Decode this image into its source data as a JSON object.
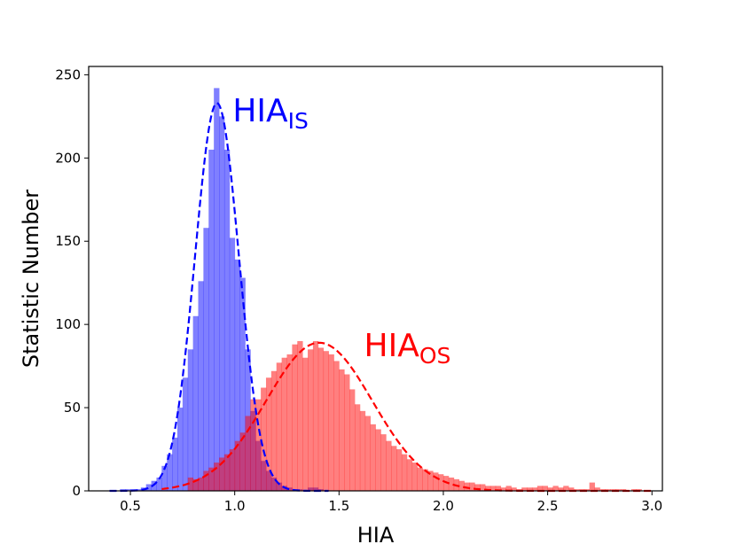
{
  "chart_data": {
    "type": "histogram",
    "xlabel": "HIA",
    "ylabel": "Statistic Number",
    "xlim": [
      0.3,
      3.05
    ],
    "ylim": [
      0,
      255
    ],
    "x_ticks": [
      "0.5",
      "1.0",
      "1.5",
      "2.0",
      "2.5",
      "3.0"
    ],
    "y_ticks": [
      "0",
      "50",
      "100",
      "150",
      "200",
      "250"
    ],
    "grid": false,
    "bin_width": 0.025,
    "series": [
      {
        "name_main": "HIA",
        "name_sub": "IS",
        "color": "#0000ff",
        "bar_opacity": 0.5,
        "bin_starts": [
          0.35,
          0.375,
          0.4,
          0.425,
          0.45,
          0.475,
          0.5,
          0.525,
          0.55,
          0.575,
          0.6,
          0.625,
          0.65,
          0.675,
          0.7,
          0.725,
          0.75,
          0.775,
          0.8,
          0.825,
          0.85,
          0.875,
          0.9,
          0.925,
          0.95,
          0.975,
          1.0,
          1.025,
          1.05,
          1.075,
          1.1,
          1.125,
          1.15,
          1.175,
          1.2,
          1.225,
          1.25,
          1.275,
          1.3,
          1.325,
          1.35,
          1.375,
          1.4,
          1.425,
          1.45
        ],
        "counts": [
          0,
          0,
          0,
          0,
          1,
          1,
          1,
          1,
          2,
          4,
          6,
          8,
          15,
          22,
          32,
          50,
          68,
          85,
          105,
          126,
          158,
          205,
          242,
          225,
          205,
          152,
          139,
          128,
          85,
          48,
          30,
          18,
          12,
          8,
          5,
          3,
          2,
          1,
          1,
          0,
          2,
          2,
          1,
          0,
          0
        ],
        "fit": {
          "type": "gaussian",
          "mean": 0.915,
          "sigma": 0.105,
          "peak": 233,
          "x_range": [
            0.4,
            1.45
          ],
          "style": "dashed"
        }
      },
      {
        "name_main": "HIA",
        "name_sub": "OS",
        "color": "#ff0000",
        "bar_opacity": 0.5,
        "bin_starts": [
          0.65,
          0.675,
          0.7,
          0.725,
          0.75,
          0.775,
          0.8,
          0.825,
          0.85,
          0.875,
          0.9,
          0.925,
          0.95,
          0.975,
          1.0,
          1.025,
          1.05,
          1.075,
          1.1,
          1.125,
          1.15,
          1.175,
          1.2,
          1.225,
          1.25,
          1.275,
          1.3,
          1.325,
          1.35,
          1.375,
          1.4,
          1.425,
          1.45,
          1.475,
          1.5,
          1.525,
          1.55,
          1.575,
          1.6,
          1.625,
          1.65,
          1.675,
          1.7,
          1.725,
          1.75,
          1.775,
          1.8,
          1.825,
          1.85,
          1.875,
          1.9,
          1.925,
          1.95,
          1.975,
          2.0,
          2.025,
          2.05,
          2.075,
          2.1,
          2.125,
          2.15,
          2.175,
          2.2,
          2.225,
          2.25,
          2.275,
          2.3,
          2.325,
          2.35,
          2.375,
          2.4,
          2.425,
          2.45,
          2.475,
          2.5,
          2.525,
          2.55,
          2.575,
          2.6,
          2.625,
          2.65,
          2.675,
          2.7,
          2.725,
          2.75,
          2.775,
          2.8,
          2.825,
          2.85,
          2.875,
          2.9,
          2.925,
          2.95,
          2.975
        ],
        "counts": [
          0,
          0,
          0,
          0,
          0,
          8,
          7,
          8,
          12,
          14,
          17,
          20,
          22,
          25,
          30,
          35,
          45,
          55,
          55,
          62,
          68,
          72,
          77,
          80,
          82,
          88,
          90,
          80,
          85,
          90,
          86,
          84,
          82,
          78,
          73,
          70,
          61,
          52,
          48,
          45,
          40,
          37,
          34,
          30,
          27,
          25,
          22,
          19,
          17,
          14,
          13,
          12,
          11,
          10,
          9,
          8,
          7,
          6,
          5,
          5,
          4,
          4,
          3,
          3,
          3,
          2,
          3,
          2,
          1,
          2,
          2,
          2,
          3,
          3,
          2,
          3,
          2,
          3,
          2,
          1,
          1,
          1,
          5,
          2,
          1,
          1,
          1,
          1,
          1,
          0,
          1,
          1,
          0,
          0
        ],
        "fit": {
          "type": "gaussian",
          "mean": 1.405,
          "sigma": 0.255,
          "peak": 89,
          "x_range": [
            0.65,
            3.0
          ],
          "style": "dashed"
        }
      }
    ]
  }
}
